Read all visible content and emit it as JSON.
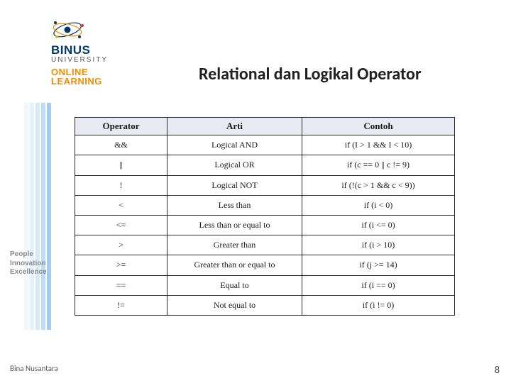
{
  "logo": {
    "binus": "BINUS",
    "university": "UNIVERSITY",
    "online": "ONLINE",
    "learning": "LEARNING"
  },
  "title": "Relational dan Logikal Operator",
  "tagline": {
    "l1": "People",
    "l2": "Innovation",
    "l3": "Excellence"
  },
  "table": {
    "headers": [
      "Operator",
      "Arti",
      "Contoh"
    ],
    "rows": [
      [
        "&&",
        "Logical AND",
        "if (I > 1 && I < 10)"
      ],
      [
        "||",
        "Logical OR",
        "if (c == 0 || c != 9)"
      ],
      [
        "!",
        "Logical NOT",
        "if (!(c > 1 && c < 9))"
      ],
      [
        "<",
        "Less than",
        "if (i < 0)"
      ],
      [
        "<=",
        "Less than or equal to",
        "if (i <= 0)"
      ],
      [
        ">",
        "Greater than",
        "if (i > 10)"
      ],
      [
        ">=",
        "Greater than or equal to",
        "if (j >= 14)"
      ],
      [
        "==",
        "Equal to",
        "if (i == 0)"
      ],
      [
        "!=",
        "Not equal to",
        "if (i != 0)"
      ]
    ]
  },
  "footer": {
    "author": "Bina Nusantara",
    "page": "8"
  }
}
